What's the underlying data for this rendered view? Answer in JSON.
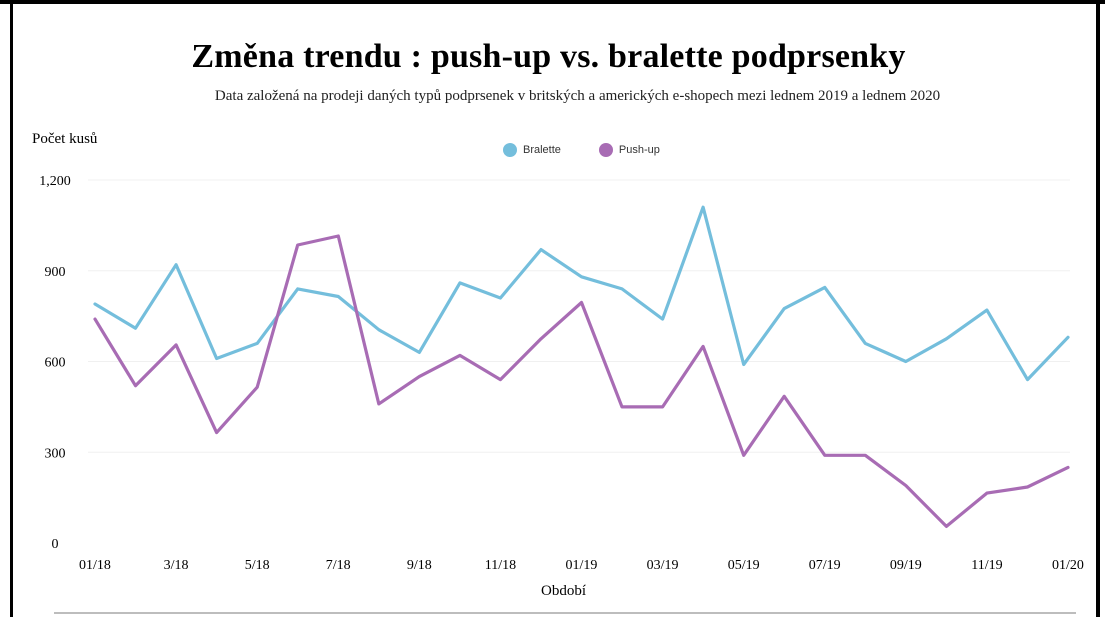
{
  "chart_data": {
    "type": "line",
    "title": "Změna trendu : push-up vs. bralette podprsenky",
    "subtitle": "Data založená na prodeji daných typů podprsenek v britských a amerických e-shopech mezi lednem 2019 a lednem 2020",
    "ylabel": "Počet kusů",
    "xlabel": "Období",
    "ylim": [
      0,
      1200
    ],
    "yticks": [
      0,
      300,
      600,
      900,
      1200
    ],
    "ytick_labels": [
      "0",
      "300",
      "600",
      "900",
      "1,200"
    ],
    "xticks": [
      "01/18",
      "3/18",
      "5/18",
      "7/18",
      "9/18",
      "11/18",
      "01/19",
      "03/19",
      "05/19",
      "07/19",
      "09/19",
      "11/19",
      "01/20"
    ],
    "xtick_positions": [
      0,
      2,
      4,
      6,
      8,
      10,
      12,
      14,
      16,
      18,
      20,
      22,
      24
    ],
    "grid": true,
    "legend_position": "top-center",
    "series": [
      {
        "name": "Bralette",
        "color": "#74bedc",
        "values": [
          790,
          710,
          920,
          610,
          660,
          840,
          815,
          705,
          630,
          860,
          810,
          970,
          880,
          840,
          740,
          1110,
          590,
          775,
          845,
          660,
          600,
          675,
          770,
          540,
          680
        ]
      },
      {
        "name": "Push-up",
        "color": "#a86cb4",
        "values": [
          740,
          520,
          655,
          365,
          515,
          985,
          1015,
          460,
          550,
          620,
          540,
          675,
          795,
          450,
          450,
          650,
          290,
          485,
          290,
          290,
          190,
          55,
          165,
          185,
          250
        ]
      }
    ]
  }
}
